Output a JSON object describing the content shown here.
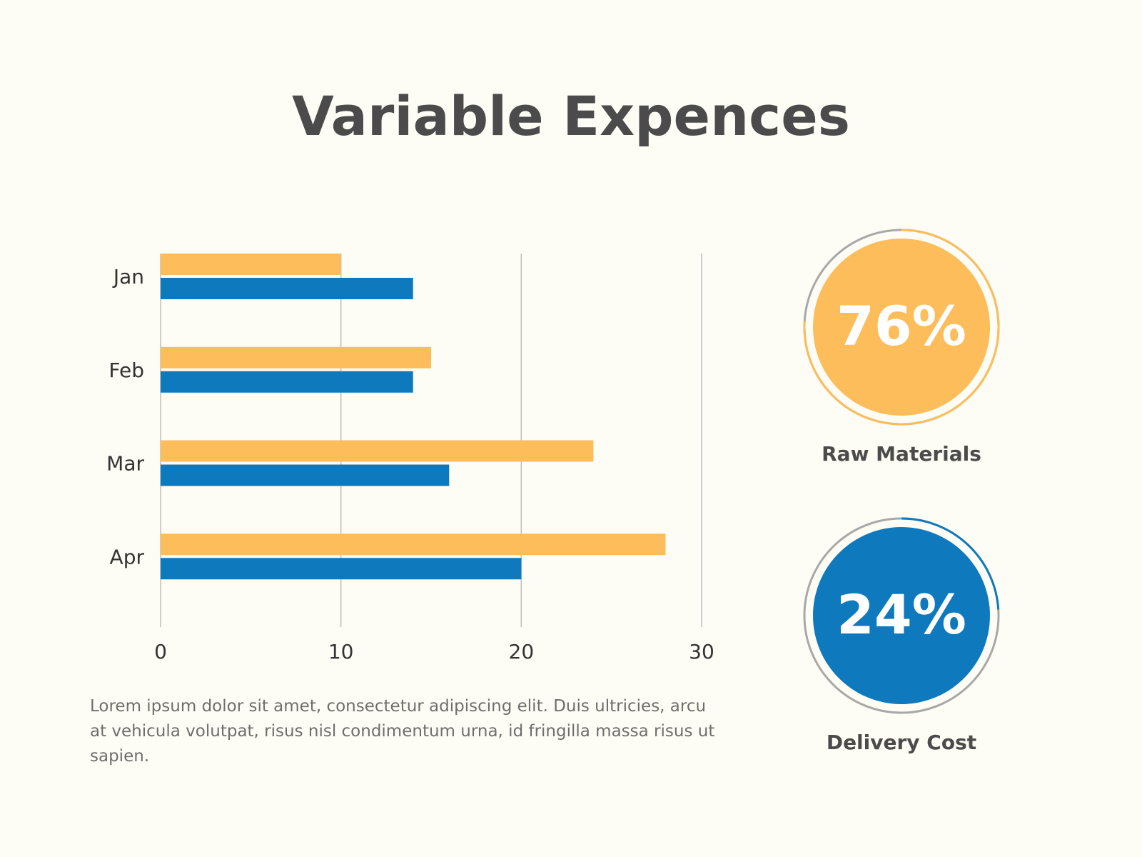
{
  "title": "Variable Expences",
  "description": "Lorem ipsum dolor sit amet, consectetur adipiscing elit. Duis ultricies, arcu at vehicula volutpat, risus nisl condimentum urna, id fringilla massa risus ut sapien.",
  "colors": {
    "orange": "#fdbd5b",
    "blue": "#0e7abd",
    "grid": "#bdbdbd",
    "gauge_track": "#a8a8a8",
    "background": "#fdfdf5"
  },
  "chart_data": [
    {
      "type": "bar",
      "orientation": "horizontal",
      "categories": [
        "Jan",
        "Feb",
        "Mar",
        "Apr"
      ],
      "series": [
        {
          "values": [
            10,
            15,
            24,
            28
          ],
          "color": "#fdbd5b"
        },
        {
          "values": [
            14,
            14,
            16,
            20
          ],
          "color": "#0e7abd"
        }
      ],
      "xlim": [
        0,
        30
      ],
      "xticks": [
        "0",
        "10",
        "20",
        "30"
      ],
      "grid": true
    },
    {
      "type": "pie",
      "style": "progress-ring",
      "value": 76,
      "label": "76%",
      "name": "Raw Materials",
      "color": "#fdbd5b"
    },
    {
      "type": "pie",
      "style": "progress-ring",
      "value": 24,
      "label": "24%",
      "name": "Delivery Cost",
      "color": "#0e7abd"
    }
  ]
}
